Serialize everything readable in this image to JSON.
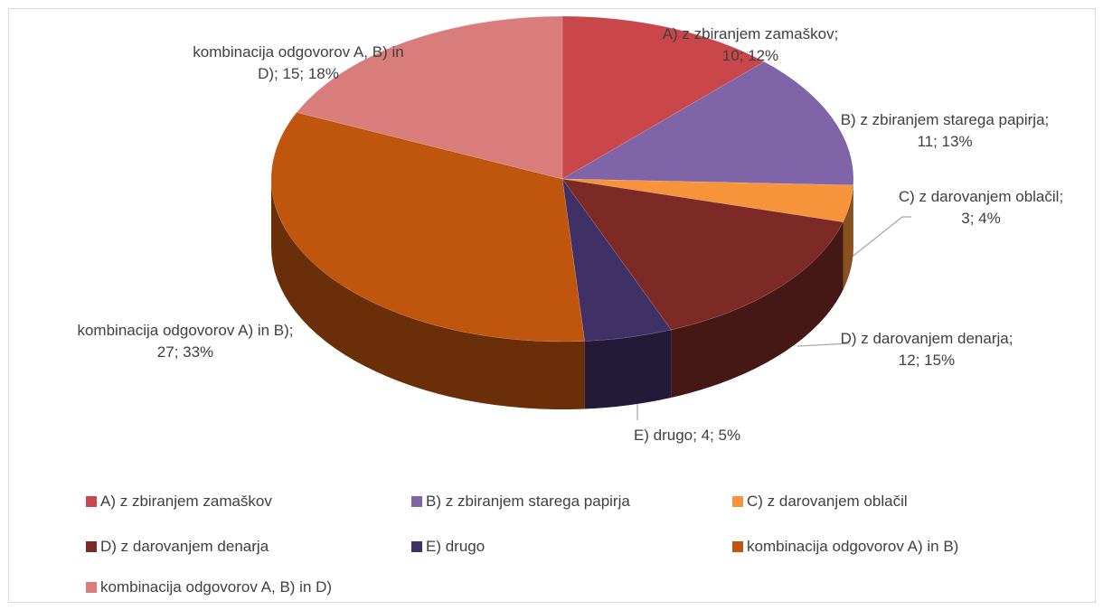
{
  "chart_data": {
    "type": "pie3d",
    "categories": [
      "A) z zbiranjem zamaškov",
      "B) z zbiranjem starega papirja",
      "C) z darovanjem oblačil",
      "D) z darovanjem denarja",
      "E) drugo",
      "kombinacija odgovorov A) in B)",
      "kombinacija odgovorov A, B) in D)"
    ],
    "values": [
      10,
      11,
      3,
      12,
      4,
      27,
      15
    ],
    "value_labels": [
      "A) z zbiranjem zamaškov; 10; 12%",
      "B) z zbiranjem starega papirja; 11; 13%",
      "C) z darovanjem oblačil; 3; 4%",
      "D) z darovanjem denarja; 12; 15%",
      "E) drugo; 4; 5%",
      "kombinacija odgovorov A) in B); 27; 33%",
      "kombinacija odgovorov A, B) in D); 15; 18%"
    ],
    "colors": [
      "#c9474a",
      "#8064a8",
      "#f7933a",
      "#7d2a26",
      "#3f3066",
      "#c0560e",
      "#d97d7c"
    ],
    "legend": "bottom"
  }
}
